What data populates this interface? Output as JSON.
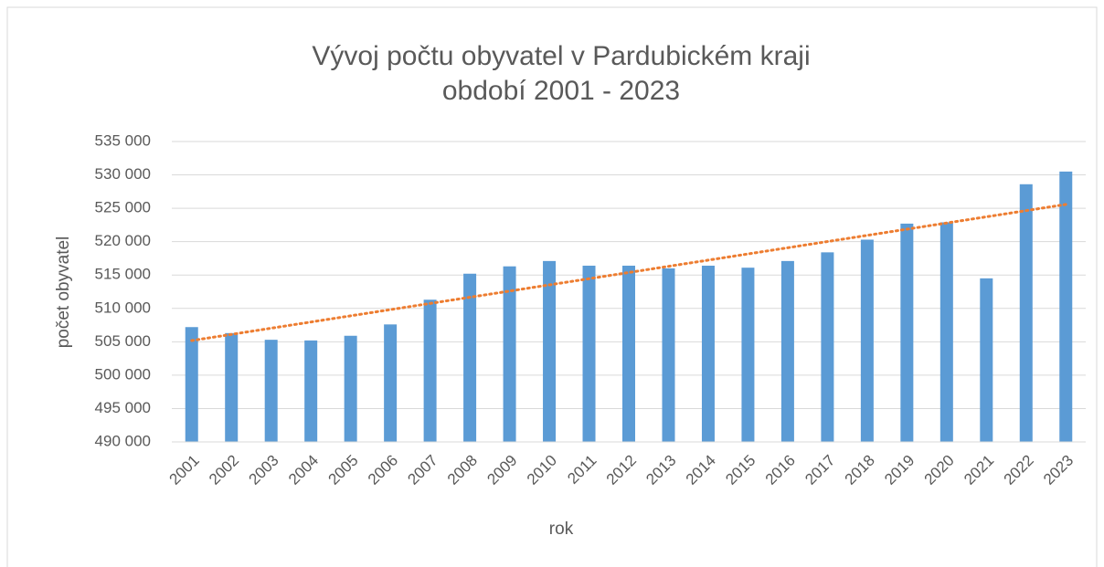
{
  "chart_data": {
    "type": "bar",
    "title": "Vývoj počtu obyvatel v Pardubickém kraji",
    "subtitle": "období 2001 - 2023",
    "x_label": "rok",
    "y_label": "počet obyvatel",
    "categories": [
      "2001",
      "2002",
      "2003",
      "2004",
      "2005",
      "2006",
      "2007",
      "2008",
      "2009",
      "2010",
      "2011",
      "2012",
      "2013",
      "2014",
      "2015",
      "2016",
      "2017",
      "2018",
      "2019",
      "2020",
      "2021",
      "2022",
      "2023"
    ],
    "values": [
      507200,
      506300,
      505300,
      505200,
      505900,
      507600,
      511300,
      515200,
      516300,
      517100,
      516400,
      516400,
      516000,
      516400,
      516100,
      517100,
      518400,
      520300,
      522700,
      522900,
      514500,
      528600,
      530500
    ],
    "color": "#5b9bd5",
    "trendline": {
      "type": "linear",
      "color": "#ed7d31"
    },
    "ylim": [
      490000,
      535000
    ],
    "yticks": [
      {
        "value": 490000,
        "label": "490 000"
      },
      {
        "value": 495000,
        "label": "495 000"
      },
      {
        "value": 500000,
        "label": "500 000"
      },
      {
        "value": 505000,
        "label": "505 000"
      },
      {
        "value": 510000,
        "label": "510 000"
      },
      {
        "value": 515000,
        "label": "515 000"
      },
      {
        "value": 520000,
        "label": "520 000"
      },
      {
        "value": 525000,
        "label": "525 000"
      },
      {
        "value": 530000,
        "label": "530 000"
      },
      {
        "value": 535000,
        "label": "535 000"
      }
    ],
    "grid": true
  }
}
